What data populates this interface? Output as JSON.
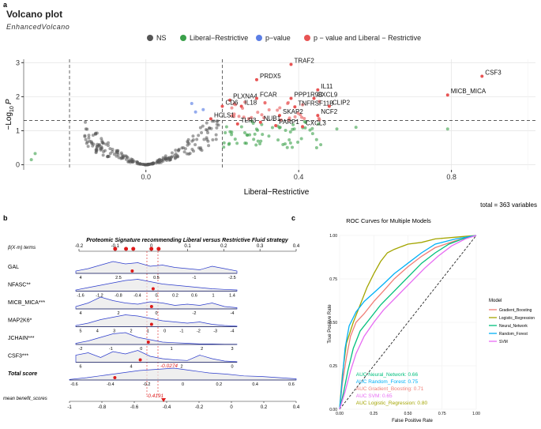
{
  "panels": {
    "a": "a",
    "b": "b",
    "c": "c"
  },
  "chart_data": [
    {
      "type": "scatter",
      "panel": "a",
      "title": "Volcano plot",
      "subtitle": "EnhancedVolcano",
      "xlabel": "Liberal−Restrictive",
      "ylabel": "−Log10 P",
      "ylabel_parts": {
        "minus": "−",
        "log": "Log",
        "sub": "10",
        "p": "P"
      },
      "xlim": [
        -0.32,
        1.02
      ],
      "ylim": [
        -0.15,
        3.1
      ],
      "xticks": [
        {
          "v": 0,
          "t": "0.0"
        },
        {
          "v": 0.4,
          "t": "0.4"
        },
        {
          "v": 0.8,
          "t": "0.8"
        }
      ],
      "yticks": [
        {
          "v": 0,
          "t": "0"
        },
        {
          "v": 1,
          "t": "1"
        },
        {
          "v": 2,
          "t": "2"
        },
        {
          "v": 3,
          "t": "3"
        }
      ],
      "vlines": [
        -0.2,
        0.2
      ],
      "hline": 1.3,
      "legend": [
        {
          "label": "NS",
          "color": "#555555"
        },
        {
          "label": "Liberal−Restrictive",
          "color": "#3aa04a"
        },
        {
          "label": "p−value",
          "color": "#5b7ee5"
        },
        {
          "label": "p − value and Liberal − Restrictive",
          "color": "#e85454"
        }
      ],
      "footer": "total = 363 variables",
      "labeled_points": [
        {
          "label": "TRAF2",
          "x": 0.38,
          "y": 2.95
        },
        {
          "label": "PRDX5",
          "x": 0.29,
          "y": 2.5
        },
        {
          "label": "IL11",
          "x": 0.45,
          "y": 2.2
        },
        {
          "label": "CSF3",
          "x": 0.88,
          "y": 2.6
        },
        {
          "label": "MICB_MICA",
          "x": 0.79,
          "y": 2.05
        },
        {
          "label": "PLXNA4",
          "x": 0.22,
          "y": 1.9
        },
        {
          "label": "FCAR",
          "x": 0.29,
          "y": 1.95
        },
        {
          "label": "PPP1R9B",
          "x": 0.38,
          "y": 1.95
        },
        {
          "label": "CXCL9",
          "x": 0.44,
          "y": 1.95
        },
        {
          "label": "CD6",
          "x": 0.2,
          "y": 1.72
        },
        {
          "label": "IL18",
          "x": 0.25,
          "y": 1.72
        },
        {
          "label": "TNFRSF11B",
          "x": 0.39,
          "y": 1.7
        },
        {
          "label": "CLIP2",
          "x": 0.48,
          "y": 1.72
        },
        {
          "label": "HCLS1",
          "x": 0.17,
          "y": 1.35
        },
        {
          "label": "SKAP2",
          "x": 0.35,
          "y": 1.45
        },
        {
          "label": "NCF2",
          "x": 0.45,
          "y": 1.45
        },
        {
          "label": "TLR3",
          "x": 0.24,
          "y": 1.2
        },
        {
          "label": "NUB1",
          "x": 0.3,
          "y": 1.25
        },
        {
          "label": "PARP1",
          "x": 0.34,
          "y": 1.15
        },
        {
          "label": "CXCL3",
          "x": 0.41,
          "y": 1.12
        }
      ]
    },
    {
      "type": "ridgeline",
      "panel": "b",
      "title": "Proteomic Signature recommending Liberal versus Restrictive Fluid strategy",
      "header_label": "β(X·m) terms",
      "top_axis": {
        "range": [
          -0.2,
          0.4
        ],
        "ticks": [
          "-0.2",
          "-0.1",
          "0",
          "0.1",
          "0.2",
          "0.3",
          "0.4"
        ]
      },
      "rows": [
        {
          "name": "GAL",
          "ticks": [
            "4",
            "2.5",
            "0.5",
            "-1",
            "-2.5"
          ],
          "marker": 0.35
        },
        {
          "name": "NFASC**",
          "ticks": [
            "-1.6",
            "-1.2",
            "-0.8",
            "-0.4",
            "0",
            "0.2",
            "0.6",
            "1",
            "1.4"
          ],
          "marker": 0.48
        },
        {
          "name": "MICB_MICA***",
          "ticks": [
            "4",
            "2",
            "0",
            "-2",
            "-4"
          ],
          "marker": 0.47
        },
        {
          "name": "MAP2K6*",
          "ticks": [
            "5",
            "4",
            "3",
            "2",
            "1",
            "0",
            "-1",
            "-2",
            "-3",
            "-4"
          ],
          "marker": 0.47
        },
        {
          "name": "JCHAIN***",
          "ticks": [
            "-2",
            "-1",
            "0",
            "1",
            "2",
            "3"
          ],
          "marker": 0.45
        },
        {
          "name": "CSF3***",
          "ticks": [
            "6",
            "4",
            "2",
            "0"
          ],
          "marker": 0.4
        },
        {
          "name": "Total score",
          "ticks": [
            "-0.6",
            "-0.4",
            "-0.2",
            "0",
            "0.2",
            "0.4",
            "0.6"
          ],
          "marker": 0.2
        }
      ],
      "dots_top": [
        -0.1,
        -0.07,
        -0.05,
        0.0,
        0.02
      ],
      "total_score_value": "-0.0274",
      "benefit_label": "mean benefit_scores",
      "benefit_value": "-0.4191",
      "bottom_axis": {
        "range": [
          -1,
          0.4
        ],
        "ticks": [
          "-1",
          "-0.8",
          "-0.6",
          "-0.4",
          "-0.2",
          "0",
          "0.2",
          "0.4"
        ]
      }
    },
    {
      "type": "line",
      "panel": "c",
      "title": "ROC Curves for Multiple Models",
      "xlabel": "False Positive Rate",
      "ylabel": "True Positive Rate",
      "xlim": [
        0,
        1
      ],
      "ylim": [
        0,
        1
      ],
      "ticks": [
        {
          "v": 0,
          "t": "0.00"
        },
        {
          "v": 0.25,
          "t": "0.25"
        },
        {
          "v": 0.5,
          "t": "0.50"
        },
        {
          "v": 0.75,
          "t": "0.75"
        },
        {
          "v": 1,
          "t": "1.00"
        }
      ],
      "legend_title": "Model",
      "series": [
        {
          "name": "Gradient_Boosting",
          "color": "#f07e76",
          "auc_label": "AUC Gradient_Boosting: 0.71",
          "points": [
            [
              0,
              0
            ],
            [
              0.02,
              0.15
            ],
            [
              0.05,
              0.3
            ],
            [
              0.08,
              0.42
            ],
            [
              0.12,
              0.5
            ],
            [
              0.18,
              0.55
            ],
            [
              0.25,
              0.62
            ],
            [
              0.32,
              0.68
            ],
            [
              0.4,
              0.75
            ],
            [
              0.5,
              0.82
            ],
            [
              0.6,
              0.88
            ],
            [
              0.7,
              0.93
            ],
            [
              0.85,
              0.97
            ],
            [
              1,
              1
            ]
          ]
        },
        {
          "name": "Logistic_Regression",
          "color": "#a3a500",
          "auc_label": "AUC Logistic_Regression: 0.80",
          "points": [
            [
              0,
              0
            ],
            [
              0.02,
              0.2
            ],
            [
              0.05,
              0.38
            ],
            [
              0.1,
              0.5
            ],
            [
              0.15,
              0.6
            ],
            [
              0.2,
              0.7
            ],
            [
              0.25,
              0.78
            ],
            [
              0.3,
              0.85
            ],
            [
              0.35,
              0.9
            ],
            [
              0.4,
              0.92
            ],
            [
              0.5,
              0.95
            ],
            [
              0.6,
              0.96
            ],
            [
              0.7,
              0.98
            ],
            [
              0.85,
              0.99
            ],
            [
              1,
              1
            ]
          ]
        },
        {
          "name": "Neural_Network",
          "color": "#00bf7d",
          "auc_label": "AUC Neural_Network: 0.66",
          "points": [
            [
              0,
              0
            ],
            [
              0.03,
              0.1
            ],
            [
              0.06,
              0.22
            ],
            [
              0.1,
              0.35
            ],
            [
              0.15,
              0.45
            ],
            [
              0.22,
              0.52
            ],
            [
              0.3,
              0.6
            ],
            [
              0.4,
              0.68
            ],
            [
              0.5,
              0.76
            ],
            [
              0.6,
              0.84
            ],
            [
              0.7,
              0.9
            ],
            [
              0.8,
              0.95
            ],
            [
              0.9,
              0.98
            ],
            [
              1,
              1
            ]
          ]
        },
        {
          "name": "Random_Forest",
          "color": "#00b0f6",
          "auc_label": "AUC Random_Forest: 0.75",
          "points": [
            [
              0,
              0
            ],
            [
              0.02,
              0.18
            ],
            [
              0.04,
              0.35
            ],
            [
              0.07,
              0.48
            ],
            [
              0.12,
              0.56
            ],
            [
              0.18,
              0.62
            ],
            [
              0.25,
              0.67
            ],
            [
              0.32,
              0.72
            ],
            [
              0.4,
              0.78
            ],
            [
              0.5,
              0.84
            ],
            [
              0.6,
              0.9
            ],
            [
              0.7,
              0.95
            ],
            [
              0.85,
              0.98
            ],
            [
              1,
              1
            ]
          ]
        },
        {
          "name": "SVM",
          "color": "#e76bf3",
          "auc_label": "AUC SVM: 0.65",
          "points": [
            [
              0,
              0
            ],
            [
              0.04,
              0.1
            ],
            [
              0.08,
              0.22
            ],
            [
              0.12,
              0.32
            ],
            [
              0.18,
              0.42
            ],
            [
              0.25,
              0.5
            ],
            [
              0.32,
              0.57
            ],
            [
              0.42,
              0.65
            ],
            [
              0.52,
              0.73
            ],
            [
              0.62,
              0.81
            ],
            [
              0.72,
              0.88
            ],
            [
              0.82,
              0.94
            ],
            [
              0.92,
              0.98
            ],
            [
              1,
              1
            ]
          ]
        }
      ],
      "auc_order": [
        "Neural_Network",
        "Random_Forest",
        "Gradient_Boosting",
        "SVM",
        "Logistic_Regression"
      ]
    }
  ]
}
